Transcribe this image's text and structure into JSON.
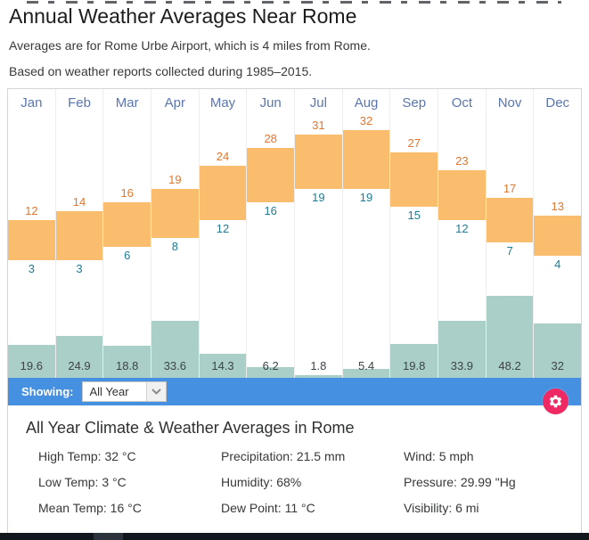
{
  "header": {
    "title": "Annual Weather Averages Near Rome",
    "line1": "Averages are for Rome Urbe Airport, which is 4 miles from Rome.",
    "line2": "Based on weather reports collected during 1985–2015."
  },
  "chart_data": {
    "type": "bar",
    "title": "Annual Weather Averages Near Rome",
    "categories": [
      "Jan",
      "Feb",
      "Mar",
      "Apr",
      "May",
      "Jun",
      "Jul",
      "Aug",
      "Sep",
      "Oct",
      "Nov",
      "Dec"
    ],
    "series": [
      {
        "name": "High Temp (°C)",
        "values": [
          12,
          14,
          16,
          19,
          24,
          28,
          31,
          32,
          27,
          23,
          17,
          13
        ]
      },
      {
        "name": "Low Temp (°C)",
        "values": [
          3,
          3,
          6,
          8,
          12,
          16,
          19,
          19,
          15,
          12,
          7,
          4
        ]
      },
      {
        "name": "Precipitation (mm)",
        "values": [
          19.6,
          24.9,
          18.8,
          33.6,
          14.3,
          6.2,
          1.8,
          5.4,
          19.8,
          33.9,
          48.2,
          32
        ]
      }
    ],
    "legend": "none",
    "grid": "off",
    "notes": "Orange range bars span low→high temperature; teal bars at baseline show precipitation; high value labeled above bar (orange), low value below bar (teal), precipitation labeled at column bottom."
  },
  "toolbar": {
    "showing_label": "Showing:",
    "selected_option": "All Year"
  },
  "stats": {
    "heading": "All Year Climate & Weather Averages in Rome",
    "items": [
      {
        "label": "High Temp",
        "value": "32 °C"
      },
      {
        "label": "Precipitation",
        "value": "21.5 mm"
      },
      {
        "label": "Wind",
        "value": "5 mph"
      },
      {
        "label": "Low Temp",
        "value": "3 °C"
      },
      {
        "label": "Humidity",
        "value": "68%"
      },
      {
        "label": "Pressure",
        "value": "29.99 \"Hg"
      },
      {
        "label": "Mean Temp",
        "value": "16 °C"
      },
      {
        "label": "Dew Point",
        "value": "11 °C"
      },
      {
        "label": "Visibility",
        "value": "6 mi"
      }
    ]
  },
  "palette": {
    "temp_bar": "#f9bd6d",
    "precip_bar": "#aacfc9",
    "high_label": "#e0762d",
    "low_label": "#1e7b93",
    "month_label": "#5b76ae",
    "toolbar_blue": "#4690e2",
    "gear_pink": "#ee2963"
  }
}
